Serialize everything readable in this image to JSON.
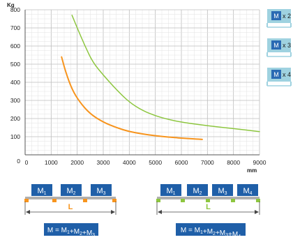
{
  "chart_data": {
    "type": "line",
    "ylabel": "Kg",
    "xlabel": "mm",
    "xlim": [
      0,
      9000
    ],
    "ylim": [
      0,
      800
    ],
    "x_ticks": [
      "0",
      "1000",
      "2000",
      "3000",
      "4000",
      "5000",
      "6000",
      "7000",
      "8000",
      "9000"
    ],
    "y_ticks": [
      "100",
      "200",
      "300",
      "400",
      "500",
      "600",
      "700",
      "800"
    ],
    "y_zero_label": "0",
    "grid": true,
    "series": [
      {
        "color": "#f7941d",
        "points": [
          [
            1400,
            540
          ],
          [
            1550,
            460
          ],
          [
            1800,
            360
          ],
          [
            2100,
            290
          ],
          [
            2500,
            225
          ],
          [
            3000,
            180
          ],
          [
            3500,
            150
          ],
          [
            4000,
            128
          ],
          [
            4500,
            115
          ],
          [
            5000,
            105
          ],
          [
            5500,
            98
          ],
          [
            6000,
            92
          ],
          [
            6500,
            88
          ],
          [
            6800,
            85
          ]
        ]
      },
      {
        "color": "#8dc63f",
        "points": [
          [
            1800,
            770
          ],
          [
            2000,
            700
          ],
          [
            2300,
            600
          ],
          [
            2600,
            510
          ],
          [
            3000,
            440
          ],
          [
            3500,
            360
          ],
          [
            4000,
            290
          ],
          [
            4500,
            245
          ],
          [
            5000,
            215
          ],
          [
            5500,
            195
          ],
          [
            6000,
            180
          ],
          [
            7000,
            160
          ],
          [
            8000,
            145
          ],
          [
            9000,
            128
          ]
        ]
      }
    ]
  },
  "badges": [
    {
      "label": "M",
      "mult": "x 2"
    },
    {
      "label": "M",
      "mult": "x 3"
    },
    {
      "label": "M",
      "mult": "x 4"
    }
  ],
  "diagram_left": {
    "masses": [
      "M1",
      "M2",
      "M3"
    ],
    "span_label": "L",
    "formula": "M = M1+M2+M3"
  },
  "diagram_right": {
    "masses": [
      "M1",
      "M2",
      "M3",
      "M4"
    ],
    "span_label": "L",
    "formula": "M = M1+M2+M3+M4"
  },
  "colors": {
    "orange": "#f7941d",
    "green": "#8dc63f",
    "mass_blue": "#1f5fa8",
    "badge_blue": "#2a6ab3",
    "badge_bg": "#9fd2e0",
    "grid": "#c8c8c8",
    "beam": "#b0b0b0"
  }
}
